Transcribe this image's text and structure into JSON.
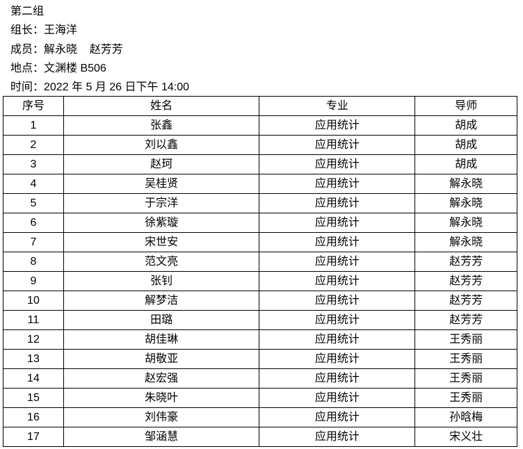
{
  "info": {
    "group": "第二组",
    "leader": "组长：王海洋",
    "members": "成员：解永晓    赵芳芳",
    "location": "地点：文渊楼 B506",
    "time": "时间：2022 年 5 月 26 日下午 14:00"
  },
  "table": {
    "headers": [
      "序号",
      "姓名",
      "专业",
      "导师"
    ],
    "rows": [
      [
        "1",
        "张鑫",
        "应用统计",
        "胡成"
      ],
      [
        "2",
        "刘以鑫",
        "应用统计",
        "胡成"
      ],
      [
        "3",
        "赵珂",
        "应用统计",
        "胡成"
      ],
      [
        "4",
        "吴桂贤",
        "应用统计",
        "解永晓"
      ],
      [
        "5",
        "于宗洋",
        "应用统计",
        "解永晓"
      ],
      [
        "6",
        "徐紫璇",
        "应用统计",
        "解永晓"
      ],
      [
        "7",
        "宋世安",
        "应用统计",
        "解永晓"
      ],
      [
        "8",
        "范文亮",
        "应用统计",
        "赵芳芳"
      ],
      [
        "9",
        "张钊",
        "应用统计",
        "赵芳芳"
      ],
      [
        "10",
        "解梦洁",
        "应用统计",
        "赵芳芳"
      ],
      [
        "11",
        "田璐",
        "应用统计",
        "赵芳芳"
      ],
      [
        "12",
        "胡佳琳",
        "应用统计",
        "王秀丽"
      ],
      [
        "13",
        "胡敬亚",
        "应用统计",
        "王秀丽"
      ],
      [
        "14",
        "赵宏强",
        "应用统计",
        "王秀丽"
      ],
      [
        "15",
        "朱晓叶",
        "应用统计",
        "王秀丽"
      ],
      [
        "16",
        "刘伟豪",
        "应用统计",
        "孙晗梅"
      ],
      [
        "17",
        "邹涵慧",
        "应用统计",
        "宋义壮"
      ]
    ]
  }
}
